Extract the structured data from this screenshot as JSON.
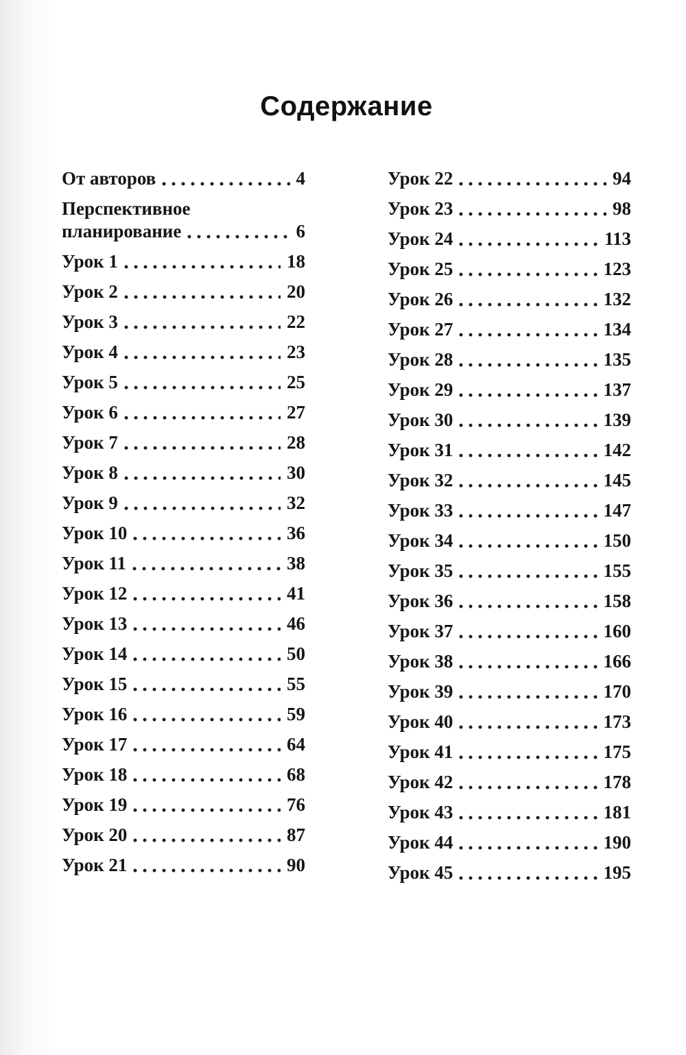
{
  "title": "Содержание",
  "colors": {
    "text": "#161616",
    "page_background": "#ffffff",
    "scan_edge_shade": "#e9e9e9"
  },
  "columns": [
    {
      "entries": [
        {
          "label": "От авторов",
          "page": "4"
        },
        {
          "label_lines": [
            "Перспективное",
            "планирование"
          ],
          "page": "6"
        },
        {
          "label": "Урок 1",
          "page": "18"
        },
        {
          "label": "Урок 2",
          "page": "20"
        },
        {
          "label": "Урок 3",
          "page": "22"
        },
        {
          "label": "Урок 4",
          "page": "23"
        },
        {
          "label": "Урок 5",
          "page": "25"
        },
        {
          "label": "Урок 6",
          "page": "27"
        },
        {
          "label": "Урок 7",
          "page": "28"
        },
        {
          "label": "Урок 8",
          "page": "30"
        },
        {
          "label": "Урок 9",
          "page": "32"
        },
        {
          "label": "Урок 10",
          "page": "36"
        },
        {
          "label": "Урок 11",
          "page": "38"
        },
        {
          "label": "Урок 12",
          "page": "41"
        },
        {
          "label": "Урок 13",
          "page": "46"
        },
        {
          "label": "Урок 14",
          "page": "50"
        },
        {
          "label": "Урок 15",
          "page": "55"
        },
        {
          "label": "Урок 16",
          "page": "59"
        },
        {
          "label": "Урок 17",
          "page": "64"
        },
        {
          "label": "Урок 18",
          "page": "68"
        },
        {
          "label": "Урок 19",
          "page": "76"
        },
        {
          "label": "Урок 20",
          "page": "87"
        },
        {
          "label": "Урок 21",
          "page": "90"
        }
      ]
    },
    {
      "entries": [
        {
          "label": "Урок 22",
          "page": "94"
        },
        {
          "label": "Урок 23",
          "page": "98"
        },
        {
          "label": "Урок 24",
          "page": "113"
        },
        {
          "label": "Урок 25",
          "page": "123"
        },
        {
          "label": "Урок 26",
          "page": "132"
        },
        {
          "label": "Урок 27",
          "page": "134"
        },
        {
          "label": "Урок 28",
          "page": "135"
        },
        {
          "label": "Урок 29",
          "page": "137"
        },
        {
          "label": "Урок 30",
          "page": "139"
        },
        {
          "label": "Урок 31",
          "page": "142"
        },
        {
          "label": "Урок 32",
          "page": "145"
        },
        {
          "label": "Урок 33",
          "page": "147"
        },
        {
          "label": "Урок 34",
          "page": "150"
        },
        {
          "label": "Урок 35",
          "page": "155"
        },
        {
          "label": "Урок 36",
          "page": "158"
        },
        {
          "label": "Урок 37",
          "page": "160"
        },
        {
          "label": "Урок 38",
          "page": "166"
        },
        {
          "label": "Урок 39",
          "page": "170"
        },
        {
          "label": "Урок 40",
          "page": "173"
        },
        {
          "label": "Урок 41",
          "page": "175"
        },
        {
          "label": "Урок 42",
          "page": "178"
        },
        {
          "label": "Урок 43",
          "page": "181"
        },
        {
          "label": "Урок 44",
          "page": "190"
        },
        {
          "label": "Урок 45",
          "page": "195"
        }
      ]
    }
  ]
}
